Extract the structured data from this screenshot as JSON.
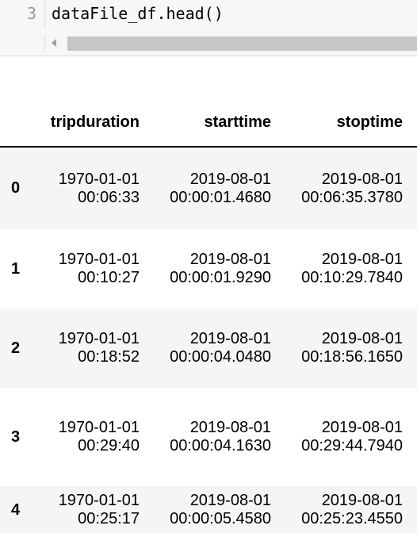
{
  "code_cell": {
    "line_number": "3",
    "code": "dataFile_df.head()"
  },
  "icons": {
    "scroll_left": "scroll-left-arrow-icon"
  },
  "table": {
    "columns": [
      "",
      "tripduration",
      "starttime",
      "stoptime"
    ],
    "rows": [
      {
        "index": "0",
        "tripduration": [
          "1970-01-01",
          "00:06:33"
        ],
        "starttime": [
          "2019-08-01",
          "00:00:01.4680"
        ],
        "stoptime": [
          "2019-08-01",
          "00:06:35.3780"
        ]
      },
      {
        "index": "1",
        "tripduration": [
          "1970-01-01",
          "00:10:27"
        ],
        "starttime": [
          "2019-08-01",
          "00:00:01.9290"
        ],
        "stoptime": [
          "2019-08-01",
          "00:10:29.7840"
        ]
      },
      {
        "index": "2",
        "tripduration": [
          "1970-01-01",
          "00:18:52"
        ],
        "starttime": [
          "2019-08-01",
          "00:00:04.0480"
        ],
        "stoptime": [
          "2019-08-01",
          "00:18:56.1650"
        ]
      },
      {
        "index": "3",
        "tripduration": [
          "1970-01-01",
          "00:29:40"
        ],
        "starttime": [
          "2019-08-01",
          "00:00:04.1630"
        ],
        "stoptime": [
          "2019-08-01",
          "00:29:44.7940"
        ]
      },
      {
        "index": "4",
        "tripduration": [
          "1970-01-01",
          "00:25:17"
        ],
        "starttime": [
          "2019-08-01",
          "00:00:05.4580"
        ],
        "stoptime": [
          "2019-08-01",
          "00:25:23.4550"
        ]
      }
    ]
  }
}
